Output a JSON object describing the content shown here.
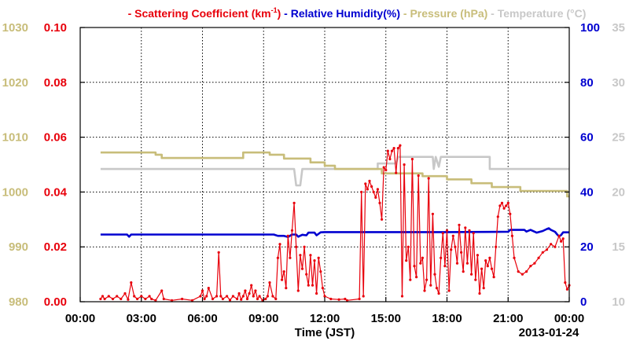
{
  "chart_data": {
    "type": "line",
    "date_label": "2013-01-24",
    "xlabel": "Time (JST)",
    "x_ticks": [
      "00:00",
      "03:00",
      "06:00",
      "09:00",
      "12:00",
      "15:00",
      "18:00",
      "21:00",
      "00:00"
    ],
    "xlim_hours": [
      0,
      24
    ],
    "grid": true,
    "legend_placement": "top",
    "legend": [
      {
        "id": "scat",
        "dash": "-",
        "label": "Scattering Coefficient (km",
        "sup": "-1",
        "tail": ")",
        "color": "#e8000b"
      },
      {
        "id": "rh",
        "dash": "-",
        "label": "Relative Humidity(%)",
        "sup": "",
        "tail": "",
        "color": "#0000d0"
      },
      {
        "id": "pres",
        "dash": "-",
        "label": "Pressure (hPa)",
        "sup": "",
        "tail": "",
        "color": "#c8bd7a"
      },
      {
        "id": "temp",
        "dash": "-",
        "label": "Temperature (",
        "sup": "",
        "tail": "°C)",
        "color": "#c8c8c8"
      }
    ],
    "axes": {
      "pressure": {
        "side": "left-outer",
        "ylim": [
          980,
          1030
        ],
        "ticks": [
          "980",
          "990",
          "1000",
          "1010",
          "1020",
          "1030"
        ],
        "color": "#c8bd7a"
      },
      "scattering": {
        "side": "left-inner",
        "ylim": [
          0,
          0.1
        ],
        "ticks": [
          "0.00",
          "0.02",
          "0.04",
          "0.06",
          "0.08",
          "0.10"
        ],
        "color": "#e8000b"
      },
      "humidity": {
        "side": "right-inner",
        "ylim": [
          0,
          100
        ],
        "ticks": [
          "0",
          "20",
          "40",
          "60",
          "80",
          "100"
        ],
        "color": "#0000d0"
      },
      "temperature": {
        "side": "right-outer",
        "ylim": [
          10,
          35
        ],
        "ticks": [
          "10",
          "15",
          "20",
          "25",
          "30",
          "35"
        ],
        "color": "#c8c8c8"
      }
    },
    "series": [
      {
        "id": "scat",
        "axis": "scattering",
        "color": "#e8000b",
        "markers": true,
        "points": [
          [
            1.0,
            0.001
          ],
          [
            1.1,
            0.002
          ],
          [
            1.2,
            0.001
          ],
          [
            1.4,
            0.002
          ],
          [
            1.6,
            0.001
          ],
          [
            1.8,
            0.002
          ],
          [
            2.0,
            0.001
          ],
          [
            2.2,
            0.003
          ],
          [
            2.35,
            0.0008
          ],
          [
            2.5,
            0.007
          ],
          [
            2.65,
            0.002
          ],
          [
            2.8,
            0.001
          ],
          [
            3.0,
            0.002
          ],
          [
            3.2,
            0.001
          ],
          [
            3.4,
            0.002
          ],
          [
            3.5,
            0.001
          ],
          [
            3.7,
            0.0005
          ],
          [
            4.0,
            0.004
          ],
          [
            4.1,
            0.001
          ],
          [
            4.5,
            0.0005
          ],
          [
            5.0,
            0.001
          ],
          [
            5.5,
            0.0005
          ],
          [
            5.9,
            0.002
          ],
          [
            6.0,
            0.004
          ],
          [
            6.1,
            0.001
          ],
          [
            6.2,
            0.002
          ],
          [
            6.3,
            0.005
          ],
          [
            6.5,
            0.001
          ],
          [
            6.7,
            0.002
          ],
          [
            6.8,
            0.018
          ],
          [
            6.9,
            0.002
          ],
          [
            7.0,
            0.001
          ],
          [
            7.2,
            0.002
          ],
          [
            7.35,
            0.0006
          ],
          [
            7.5,
            0.002
          ],
          [
            7.7,
            0.001
          ],
          [
            7.8,
            0.003
          ],
          [
            7.9,
            0.0008
          ],
          [
            8.0,
            0.002
          ],
          [
            8.1,
            0.004
          ],
          [
            8.2,
            0.001
          ],
          [
            8.3,
            0.003
          ],
          [
            8.4,
            0.006
          ],
          [
            8.5,
            0.002
          ],
          [
            8.6,
            0.004
          ],
          [
            8.7,
            0.001
          ],
          [
            8.8,
            0.002
          ],
          [
            8.95,
            0.0005
          ],
          [
            9.1,
            0.001
          ],
          [
            9.2,
            0.002
          ],
          [
            9.3,
            0.007
          ],
          [
            9.45,
            0.002
          ],
          [
            9.6,
            0.001
          ],
          [
            9.7,
            0.016
          ],
          [
            9.8,
            0.021
          ],
          [
            9.9,
            0.008
          ],
          [
            10.0,
            0.011
          ],
          [
            10.1,
            0.005
          ],
          [
            10.2,
            0.024
          ],
          [
            10.3,
            0.016
          ],
          [
            10.4,
            0.026
          ],
          [
            10.5,
            0.036
          ],
          [
            10.6,
            0.02
          ],
          [
            10.7,
            0.004
          ],
          [
            10.8,
            0.017
          ],
          [
            10.9,
            0.012
          ],
          [
            11.0,
            0.02
          ],
          [
            11.1,
            0.01
          ],
          [
            11.2,
            0.006
          ],
          [
            11.3,
            0.017
          ],
          [
            11.4,
            0.006
          ],
          [
            11.5,
            0.015
          ],
          [
            11.6,
            0.003
          ],
          [
            11.7,
            0.016
          ],
          [
            11.8,
            0.011
          ],
          [
            11.9,
            0.005
          ],
          [
            12.0,
            0.002
          ],
          [
            12.3,
            0.001
          ],
          [
            12.7,
            0.0008
          ],
          [
            13.0,
            0.001
          ],
          [
            13.1,
            0.0005
          ],
          [
            13.7,
            0.001
          ],
          [
            13.8,
            0.04
          ],
          [
            13.9,
            0.002
          ],
          [
            14.0,
            0.043
          ],
          [
            14.1,
            0.041
          ],
          [
            14.2,
            0.044
          ],
          [
            14.3,
            0.042
          ],
          [
            14.4,
            0.04
          ],
          [
            14.5,
            0.038
          ],
          [
            14.6,
            0.041
          ],
          [
            14.7,
            0.036
          ],
          [
            14.8,
            0.03
          ],
          [
            14.9,
            0.049
          ],
          [
            15.0,
            0.048
          ],
          [
            15.1,
            0.055
          ],
          [
            15.2,
            0.052
          ],
          [
            15.3,
            0.055
          ],
          [
            15.4,
            0.056
          ],
          [
            15.5,
            0.047
          ],
          [
            15.6,
            0.056
          ],
          [
            15.7,
            0.057
          ],
          [
            15.8,
            0.002
          ],
          [
            15.9,
            0.05
          ],
          [
            16.0,
            0.015
          ],
          [
            16.1,
            0.02
          ],
          [
            16.2,
            0.008
          ],
          [
            16.3,
            0.052
          ],
          [
            16.4,
            0.013
          ],
          [
            16.5,
            0.009
          ],
          [
            16.6,
            0.046
          ],
          [
            16.7,
            0.014
          ],
          [
            16.8,
            0.016
          ],
          [
            16.9,
            0.004
          ],
          [
            17.0,
            0.008
          ],
          [
            17.1,
            0.045
          ],
          [
            17.2,
            0.006
          ],
          [
            17.3,
            0.032
          ],
          [
            17.4,
            0.01
          ],
          [
            17.5,
            0.005
          ],
          [
            17.6,
            0.003
          ],
          [
            17.7,
            0.016
          ],
          [
            17.8,
            0.025
          ],
          [
            17.9,
            0.013
          ],
          [
            18.0,
            0.026
          ],
          [
            18.1,
            0.004
          ],
          [
            18.2,
            0.019
          ],
          [
            18.3,
            0.024
          ],
          [
            18.4,
            0.02
          ],
          [
            18.5,
            0.014
          ],
          [
            18.6,
            0.028
          ],
          [
            18.7,
            0.018
          ],
          [
            18.8,
            0.011
          ],
          [
            18.9,
            0.027
          ],
          [
            19.0,
            0.014
          ],
          [
            19.1,
            0.026
          ],
          [
            19.2,
            0.01
          ],
          [
            19.3,
            0.025
          ],
          [
            19.4,
            0.008
          ],
          [
            19.5,
            0.017
          ],
          [
            19.6,
            0.003
          ],
          [
            19.7,
            0.012
          ],
          [
            19.8,
            0.005
          ],
          [
            19.9,
            0.015
          ],
          [
            20.0,
            0.013
          ],
          [
            20.1,
            0.016
          ],
          [
            20.2,
            0.012
          ],
          [
            20.3,
            0.009
          ],
          [
            20.4,
            0.02
          ],
          [
            20.5,
            0.031
          ],
          [
            20.6,
            0.035
          ],
          [
            20.7,
            0.036
          ],
          [
            20.8,
            0.034
          ],
          [
            20.9,
            0.035
          ],
          [
            21.0,
            0.036
          ],
          [
            21.1,
            0.032
          ],
          [
            21.2,
            0.024
          ],
          [
            21.3,
            0.016
          ],
          [
            21.5,
            0.011
          ],
          [
            21.7,
            0.01
          ],
          [
            21.9,
            0.011
          ],
          [
            22.1,
            0.013
          ],
          [
            22.3,
            0.014
          ],
          [
            22.5,
            0.016
          ],
          [
            22.7,
            0.018
          ],
          [
            22.9,
            0.019
          ],
          [
            23.1,
            0.021
          ],
          [
            23.3,
            0.02
          ],
          [
            23.5,
            0.024
          ],
          [
            23.6,
            0.022
          ],
          [
            23.7,
            0.023
          ],
          [
            23.8,
            0.007
          ],
          [
            23.9,
            0.0045
          ],
          [
            24.0,
            0.006
          ]
        ]
      },
      {
        "id": "rh",
        "axis": "humidity",
        "color": "#0000d0",
        "markers": false,
        "points": [
          [
            1.0,
            24.5
          ],
          [
            2.3,
            24.5
          ],
          [
            2.4,
            23.7
          ],
          [
            2.5,
            24.5
          ],
          [
            3.5,
            24.5
          ],
          [
            4.0,
            24.5
          ],
          [
            7.0,
            24.5
          ],
          [
            9.5,
            24.5
          ],
          [
            9.7,
            24.0
          ],
          [
            10.0,
            24.0
          ],
          [
            10.2,
            23.6
          ],
          [
            10.4,
            24.5
          ],
          [
            10.6,
            24.5
          ],
          [
            10.7,
            23.7
          ],
          [
            10.9,
            24.4
          ],
          [
            11.1,
            24.2
          ],
          [
            11.2,
            25.2
          ],
          [
            11.5,
            25.2
          ],
          [
            11.6,
            24.2
          ],
          [
            11.8,
            25.3
          ],
          [
            12.0,
            25.4
          ],
          [
            15.0,
            25.4
          ],
          [
            18.0,
            25.4
          ],
          [
            21.0,
            25.5
          ],
          [
            21.1,
            26.2
          ],
          [
            21.8,
            26.2
          ],
          [
            21.9,
            25.6
          ],
          [
            22.1,
            26.2
          ],
          [
            22.4,
            25.2
          ],
          [
            22.7,
            25.8
          ],
          [
            22.9,
            26.5
          ],
          [
            23.0,
            26.8
          ],
          [
            23.1,
            26.2
          ],
          [
            23.3,
            25.5
          ],
          [
            23.4,
            24.6
          ],
          [
            23.5,
            23.8
          ],
          [
            23.6,
            24.3
          ],
          [
            23.7,
            25.3
          ],
          [
            24.0,
            25.3
          ]
        ]
      },
      {
        "id": "pres",
        "axis": "pressure",
        "color": "#c8bd7a",
        "markers": false,
        "points": [
          [
            1.0,
            1007.2
          ],
          [
            3.7,
            1007.2
          ],
          [
            3.7,
            1006.8
          ],
          [
            4.0,
            1006.8
          ],
          [
            4.0,
            1006.2
          ],
          [
            8.0,
            1006.2
          ],
          [
            8.0,
            1007.2
          ],
          [
            9.3,
            1007.2
          ],
          [
            9.3,
            1006.8
          ],
          [
            10.0,
            1006.8
          ],
          [
            10.0,
            1006.1
          ],
          [
            11.3,
            1006.1
          ],
          [
            11.3,
            1005.4
          ],
          [
            12.0,
            1005.4
          ],
          [
            12.0,
            1004.8
          ],
          [
            12.5,
            1004.8
          ],
          [
            12.5,
            1004.2
          ],
          [
            14.8,
            1004.2
          ],
          [
            14.8,
            1003.4
          ],
          [
            16.8,
            1003.4
          ],
          [
            16.8,
            1002.9
          ],
          [
            18.0,
            1002.9
          ],
          [
            18.0,
            1002.3
          ],
          [
            19.2,
            1002.3
          ],
          [
            19.2,
            1001.6
          ],
          [
            20.2,
            1001.6
          ],
          [
            20.2,
            1000.9
          ],
          [
            21.6,
            1000.9
          ],
          [
            21.6,
            1000.2
          ],
          [
            23.9,
            1000.2
          ],
          [
            23.9,
            999.2
          ],
          [
            24.0,
            999.2
          ]
        ]
      },
      {
        "id": "temp",
        "axis": "temperature",
        "color": "#c8c8c8",
        "markers": false,
        "points": [
          [
            1.0,
            22.1
          ],
          [
            10.5,
            22.1
          ],
          [
            10.6,
            20.6
          ],
          [
            10.8,
            20.6
          ],
          [
            10.9,
            22.1
          ],
          [
            14.6,
            22.1
          ],
          [
            14.6,
            22.6
          ],
          [
            15.5,
            22.6
          ],
          [
            15.6,
            23.2
          ],
          [
            17.3,
            23.2
          ],
          [
            17.35,
            22.1
          ],
          [
            17.45,
            23.2
          ],
          [
            17.6,
            22.3
          ],
          [
            17.7,
            23.2
          ],
          [
            20.1,
            23.2
          ],
          [
            20.1,
            22.1
          ],
          [
            24.0,
            22.1
          ]
        ]
      }
    ]
  }
}
